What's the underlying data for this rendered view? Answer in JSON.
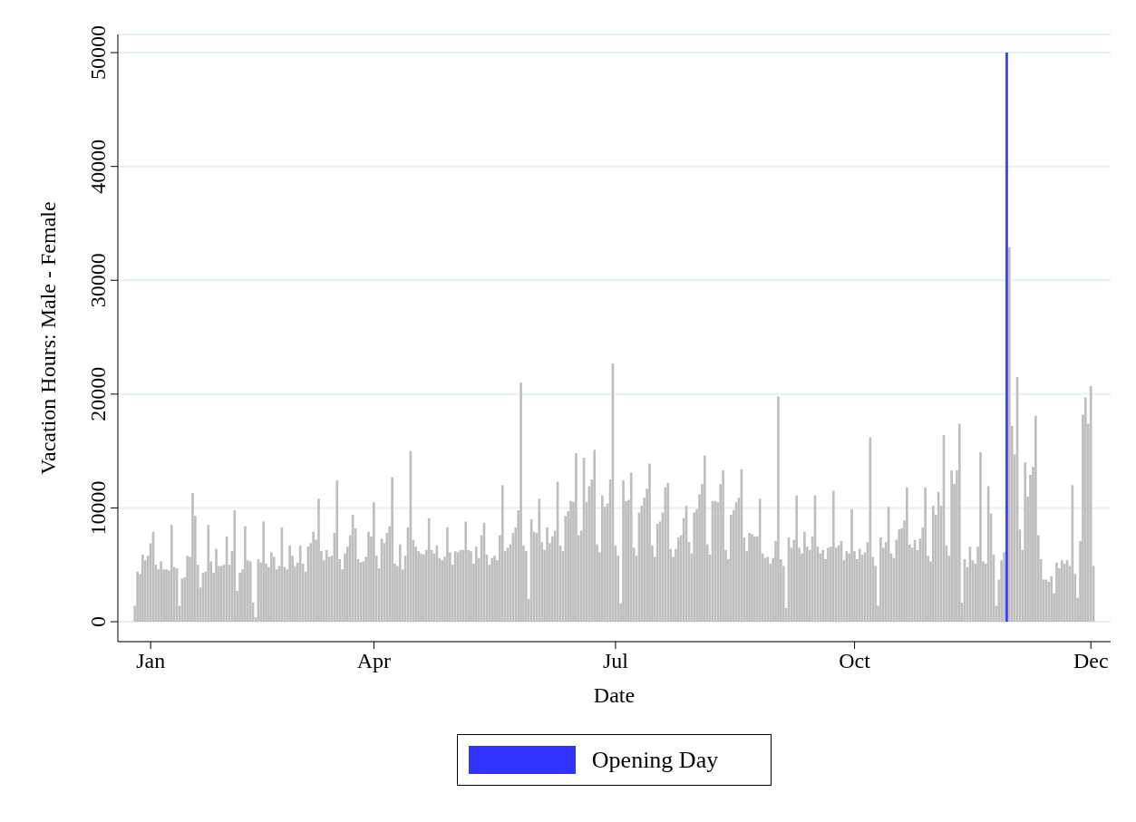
{
  "chart_data": {
    "type": "bar",
    "xlabel": "Date",
    "ylabel": "Vacation Hours: Male - Female",
    "categories": [
      null,
      null,
      null,
      null,
      null,
      null,
      "Jan",
      null,
      null,
      null,
      null,
      null,
      null,
      null,
      null,
      null,
      null,
      null,
      null,
      null,
      null,
      null,
      null,
      null,
      null,
      null,
      null,
      null,
      null,
      null,
      null,
      null,
      null,
      null,
      null,
      null,
      null,
      null,
      null,
      null,
      null,
      null,
      null,
      null,
      null,
      null,
      null,
      null,
      null,
      null,
      null,
      null,
      null,
      null,
      null,
      null,
      null,
      null,
      null,
      null,
      null,
      null,
      null,
      null,
      null,
      null,
      null,
      null,
      null,
      null,
      null,
      null,
      null,
      null,
      null,
      null,
      null,
      null,
      null,
      null,
      null,
      null,
      null,
      null,
      null,
      null,
      null,
      null,
      null,
      null,
      null,
      "Apr",
      null,
      null,
      null,
      null,
      null,
      null,
      null,
      null,
      null,
      null,
      null,
      null,
      null,
      null,
      null,
      null,
      null,
      null,
      null,
      null,
      null,
      null,
      null,
      null,
      null,
      null,
      null,
      null,
      null,
      null,
      null,
      null,
      null,
      null,
      null,
      null,
      null,
      null,
      null,
      null,
      null,
      null,
      null,
      null,
      null,
      null,
      null,
      null,
      null,
      null,
      null,
      null,
      null,
      null,
      null,
      null,
      null,
      null,
      null,
      null,
      null,
      null,
      null,
      null,
      null,
      null,
      null,
      null,
      null,
      null,
      null,
      null,
      null,
      null,
      null,
      null,
      null,
      null,
      null,
      null,
      null,
      null,
      null,
      null,
      null,
      null,
      null,
      null,
      null,
      null,
      null,
      "Jul",
      null,
      null,
      null,
      null,
      null,
      null,
      null,
      null,
      null,
      null,
      null,
      null,
      null,
      null,
      null,
      null,
      null,
      null,
      null,
      null,
      null,
      null,
      null,
      null,
      null,
      null,
      null,
      null,
      null,
      null,
      null,
      null,
      null,
      null,
      null,
      null,
      null,
      null,
      null,
      null,
      null,
      null,
      null,
      null,
      null,
      null,
      null,
      null,
      null,
      null,
      null,
      null,
      null,
      null,
      null,
      null,
      null,
      null,
      null,
      null,
      null,
      null,
      null,
      null,
      null,
      null,
      null,
      null,
      null,
      null,
      null,
      null,
      null,
      null,
      null,
      null,
      null,
      null,
      null,
      null,
      null,
      null,
      null,
      null,
      null,
      null,
      null,
      null,
      null,
      null,
      "Oct",
      null,
      null,
      null,
      null,
      null,
      null,
      null,
      null,
      null,
      null,
      null,
      null,
      null,
      null,
      null,
      null,
      null,
      null,
      null,
      null,
      null,
      null,
      null,
      null,
      null,
      null,
      null,
      null,
      null,
      null,
      null,
      null,
      null,
      null,
      null,
      null,
      null,
      null,
      null,
      null,
      null,
      null,
      null,
      null,
      null,
      null,
      null,
      null,
      null,
      null,
      null,
      null,
      null,
      null,
      null,
      null,
      null,
      null,
      null,
      null,
      null,
      null,
      null,
      null,
      null,
      null,
      null,
      null,
      null,
      null,
      null,
      null,
      null,
      null,
      null,
      null,
      null,
      null,
      null,
      null,
      null,
      null,
      null,
      null,
      null,
      null,
      null,
      null,
      null,
      "Dec",
      null
    ],
    "series": [
      {
        "color": "#bebebe",
        "values": [
          1400,
          4400,
          4200,
          5900,
          5400,
          5800,
          6900,
          7900,
          5000,
          4600,
          5300,
          4600,
          4600,
          4500,
          8500,
          4800,
          4700,
          1400,
          3800,
          3900,
          5800,
          5700,
          11300,
          9300,
          5000,
          3000,
          4300,
          4400,
          8500,
          5300,
          4300,
          6400,
          4900,
          4900,
          5000,
          7500,
          5000,
          6200,
          9800,
          2700,
          4300,
          4600,
          8400,
          5400,
          5300,
          1700,
          400,
          5500,
          5200,
          8800,
          5100,
          4800,
          6100,
          5700,
          4600,
          4900,
          8300,
          4800,
          4600,
          6700,
          5800,
          4900,
          5200,
          6700,
          5100,
          4400,
          6600,
          6900,
          7900,
          7200,
          10800,
          6200,
          5400,
          6300,
          5700,
          5800,
          7800,
          12400,
          5500,
          4600,
          6000,
          6600,
          7600,
          9400,
          8200,
          5500,
          5200,
          5300,
          5700,
          7900,
          7500,
          10500,
          5800,
          4700,
          7300,
          6900,
          7800,
          8400,
          12700,
          5100,
          4900,
          6800,
          4600,
          5800,
          8300,
          15000,
          7200,
          6600,
          6200,
          6000,
          5900,
          6300,
          9100,
          6300,
          6000,
          6700,
          5600,
          5400,
          5700,
          8300,
          6100,
          5000,
          6200,
          6100,
          6300,
          6300,
          8800,
          6300,
          6200,
          5100,
          6600,
          5600,
          7600,
          8700,
          5900,
          5000,
          5600,
          5800,
          5400,
          7600,
          12000,
          6200,
          6500,
          6800,
          7800,
          8300,
          9800,
          21000,
          6700,
          6200,
          2000,
          9000,
          7900,
          7800,
          10800,
          7000,
          6300,
          8300,
          6900,
          7500,
          8000,
          12300,
          6700,
          6200,
          9300,
          9700,
          10600,
          10500,
          14800,
          7600,
          8000,
          14400,
          10500,
          11900,
          12500,
          15100,
          6800,
          6100,
          11100,
          10100,
          10400,
          12500,
          22700,
          6700,
          5800,
          1600,
          12400,
          10600,
          10700,
          13100,
          6500,
          5800,
          9600,
          10200,
          10900,
          11700,
          13900,
          6700,
          5700,
          8600,
          8800,
          9600,
          11800,
          12200,
          6400,
          5700,
          6400,
          7400,
          7600,
          9100,
          10200,
          7000,
          6000,
          9600,
          9900,
          11200,
          12100,
          14600,
          6800,
          5900,
          10600,
          10600,
          10500,
          12100,
          13300,
          6300,
          5500,
          9400,
          9800,
          10500,
          10900,
          13400,
          7400,
          6200,
          7800,
          7700,
          7500,
          7500,
          10800,
          6000,
          5600,
          5700,
          5100,
          5600,
          7100,
          19800,
          5500,
          4900,
          1200,
          7400,
          6500,
          7200,
          11100,
          6500,
          6000,
          7900,
          6600,
          6300,
          7500,
          11100,
          6600,
          6000,
          6300,
          5500,
          6500,
          6600,
          11500,
          6500,
          6700,
          7100,
          5400,
          6200,
          6000,
          9900,
          6200,
          5500,
          6400,
          5900,
          6100,
          7000,
          16200,
          5700,
          4900,
          1400,
          7400,
          6500,
          7000,
          10100,
          6000,
          5600,
          7200,
          8100,
          8200,
          8900,
          11800,
          6800,
          6500,
          7200,
          6300,
          7300,
          8300,
          11800,
          5800,
          5300,
          10200,
          9400,
          11400,
          10200,
          16400,
          6700,
          5800,
          13300,
          12100,
          13300,
          17400,
          1700,
          5500,
          4800,
          6600,
          5400,
          5100,
          6600,
          14900,
          5300,
          5100,
          11900,
          9500,
          5900,
          1400,
          3700,
          5400,
          6100,
          null,
          32900,
          17200,
          14700,
          21500,
          8100,
          6300,
          14000,
          11000,
          12900,
          13600,
          18100,
          7600,
          5500,
          3700,
          3700,
          3500,
          4000,
          2500,
          5200,
          4700,
          5400,
          5100,
          5400,
          4900,
          12000,
          4200,
          2100,
          7100,
          18200,
          19700,
          17400,
          20700,
          4900
        ]
      },
      {
        "name": "Opening Day",
        "color": "#3333ff",
        "values": [
          null,
          null,
          null,
          null,
          null,
          null,
          null,
          null,
          null,
          null,
          null,
          null,
          null,
          null,
          null,
          null,
          null,
          null,
          null,
          null,
          null,
          null,
          null,
          null,
          null,
          null,
          null,
          null,
          null,
          null,
          null,
          null,
          null,
          null,
          null,
          null,
          null,
          null,
          null,
          null,
          null,
          null,
          null,
          null,
          null,
          null,
          null,
          null,
          null,
          null,
          null,
          null,
          null,
          null,
          null,
          null,
          null,
          null,
          null,
          null,
          null,
          null,
          null,
          null,
          null,
          null,
          null,
          null,
          null,
          null,
          null,
          null,
          null,
          null,
          null,
          null,
          null,
          null,
          null,
          null,
          null,
          null,
          null,
          null,
          null,
          null,
          null,
          null,
          null,
          null,
          null,
          null,
          null,
          null,
          null,
          null,
          null,
          null,
          null,
          null,
          null,
          null,
          null,
          null,
          null,
          null,
          null,
          null,
          null,
          null,
          null,
          null,
          null,
          null,
          null,
          null,
          null,
          null,
          null,
          null,
          null,
          null,
          null,
          null,
          null,
          null,
          null,
          null,
          null,
          null,
          null,
          null,
          null,
          null,
          null,
          null,
          null,
          null,
          null,
          null,
          null,
          null,
          null,
          null,
          null,
          null,
          null,
          null,
          null,
          null,
          null,
          null,
          null,
          null,
          null,
          null,
          null,
          null,
          null,
          null,
          null,
          null,
          null,
          null,
          null,
          null,
          null,
          null,
          null,
          null,
          null,
          null,
          null,
          null,
          null,
          null,
          null,
          null,
          null,
          null,
          null,
          null,
          null,
          null,
          null,
          null,
          null,
          null,
          null,
          null,
          null,
          null,
          null,
          null,
          null,
          null,
          null,
          null,
          null,
          null,
          null,
          null,
          null,
          null,
          null,
          null,
          null,
          null,
          null,
          null,
          null,
          null,
          null,
          null,
          null,
          null,
          null,
          null,
          null,
          null,
          null,
          null,
          null,
          null,
          null,
          null,
          null,
          null,
          null,
          null,
          null,
          null,
          null,
          null,
          null,
          null,
          null,
          null,
          null,
          null,
          null,
          null,
          null,
          null,
          null,
          null,
          null,
          null,
          null,
          null,
          null,
          null,
          null,
          null,
          null,
          null,
          null,
          null,
          null,
          null,
          null,
          null,
          null,
          null,
          null,
          null,
          null,
          null,
          null,
          null,
          null,
          null,
          null,
          null,
          null,
          null,
          null,
          null,
          null,
          null,
          null,
          null,
          null,
          null,
          null,
          null,
          null,
          null,
          null,
          null,
          null,
          null,
          null,
          null,
          null,
          null,
          null,
          null,
          null,
          null,
          null,
          null,
          null,
          null,
          null,
          null,
          null,
          null,
          null,
          null,
          null,
          null,
          null,
          null,
          null,
          null,
          null,
          null,
          null,
          null,
          null,
          null,
          null,
          null,
          null,
          null,
          null,
          null,
          null,
          null,
          null,
          null,
          50000,
          null,
          null,
          null,
          null,
          null,
          null,
          null,
          null,
          null,
          null,
          null,
          null,
          null,
          null,
          null,
          null,
          null,
          null,
          null,
          null,
          null,
          null,
          null,
          null,
          null,
          null,
          null,
          null,
          null,
          null,
          null,
          null,
          null
        ]
      }
    ],
    "ylim": [
      -1750,
      51600
    ],
    "yticks": [
      0,
      10000,
      20000,
      30000,
      40000,
      50000
    ],
    "grid": "y",
    "legend": "bottom"
  }
}
